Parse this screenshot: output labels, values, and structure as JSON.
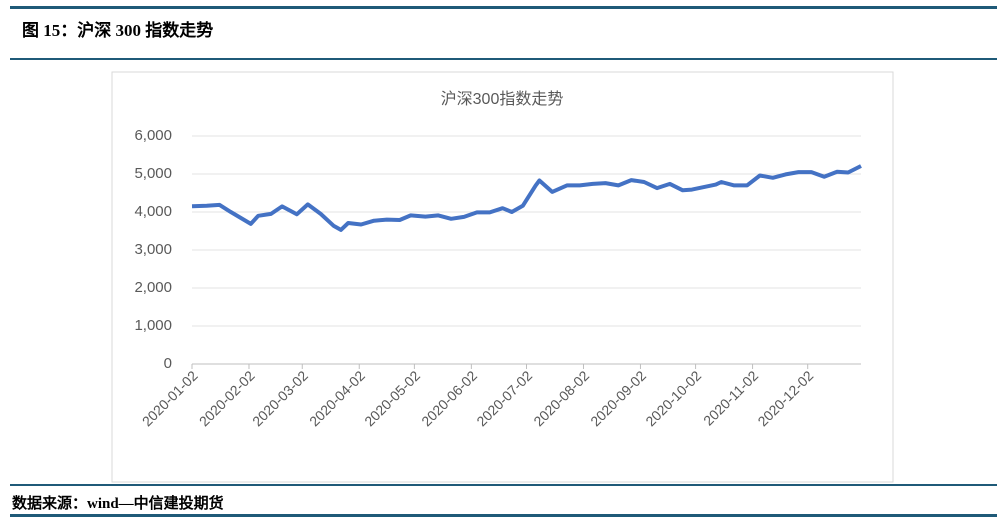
{
  "header_title": "图 15：沪深 300 指数走势",
  "source": "数据来源：wind—中信建投期货",
  "chart_data": {
    "type": "line",
    "title": "沪深300指数走势",
    "grid": true,
    "ylim": [
      0,
      6000
    ],
    "yticks": [
      0,
      {
        "value": 1000,
        "label": "1,000"
      },
      {
        "value": 2000,
        "label": "2,000"
      },
      {
        "value": 3000,
        "label": "3,000"
      },
      {
        "value": 4000,
        "label": "4,000"
      },
      {
        "value": 5000,
        "label": "5,000"
      },
      {
        "value": 6000,
        "label": "6,000"
      }
    ],
    "xlim": [
      "2020-01-02",
      "2020-12-31"
    ],
    "xticks": [
      "2020-01-02",
      "2020-02-02",
      "2020-03-02",
      "2020-04-02",
      "2020-05-02",
      "2020-06-02",
      "2020-07-02",
      "2020-08-02",
      "2020-09-02",
      "2020-10-02",
      "2020-11-02",
      "2020-12-02"
    ],
    "series": [
      {
        "color": "#4472c4",
        "x": [
          "2020-01-02",
          "2020-01-10",
          "2020-01-17",
          "2020-01-23",
          "2020-02-03",
          "2020-02-07",
          "2020-02-14",
          "2020-02-20",
          "2020-02-28",
          "2020-03-05",
          "2020-03-12",
          "2020-03-19",
          "2020-03-23",
          "2020-03-27",
          "2020-04-03",
          "2020-04-10",
          "2020-04-17",
          "2020-04-24",
          "2020-04-30",
          "2020-05-08",
          "2020-05-15",
          "2020-05-22",
          "2020-05-29",
          "2020-06-05",
          "2020-06-12",
          "2020-06-19",
          "2020-06-24",
          "2020-06-30",
          "2020-07-07",
          "2020-07-09",
          "2020-07-16",
          "2020-07-24",
          "2020-07-31",
          "2020-08-07",
          "2020-08-14",
          "2020-08-21",
          "2020-08-28",
          "2020-09-04",
          "2020-09-11",
          "2020-09-18",
          "2020-09-25",
          "2020-09-30",
          "2020-10-13",
          "2020-10-16",
          "2020-10-23",
          "2020-10-30",
          "2020-11-06",
          "2020-11-13",
          "2020-11-20",
          "2020-11-27",
          "2020-12-04",
          "2020-12-11",
          "2020-12-18",
          "2020-12-24",
          "2020-12-31"
        ],
        "values": [
          4152,
          4164,
          4186,
          4003,
          3688,
          3900,
          3950,
          4148,
          3940,
          4200,
          3950,
          3640,
          3530,
          3710,
          3670,
          3770,
          3800,
          3790,
          3910,
          3880,
          3910,
          3820,
          3870,
          3990,
          3990,
          4100,
          4000,
          4163,
          4700,
          4830,
          4530,
          4700,
          4700,
          4740,
          4760,
          4700,
          4840,
          4790,
          4630,
          4740,
          4570,
          4590,
          4720,
          4790,
          4700,
          4700,
          4960,
          4900,
          4990,
          5050,
          5050,
          4930,
          5060,
          5040,
          5211
        ]
      }
    ]
  }
}
